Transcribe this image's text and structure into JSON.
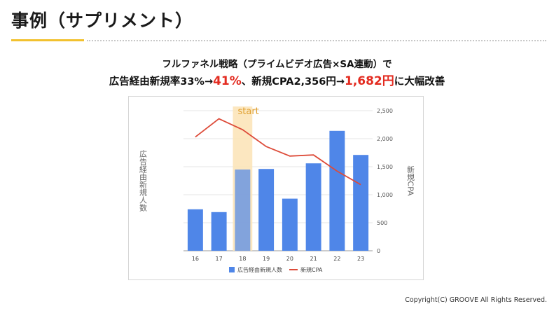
{
  "page": {
    "title": "事例（サプリメント）",
    "headline_line1": "フルファネル戦略（プライムビデオ広告×SA連動）で",
    "headline_line2": {
      "prefix": "広告経由新規率33%→",
      "value1": "41%",
      "middle": "、新規CPA2,356円→",
      "value2": "1,682円",
      "suffix": "に大幅改善"
    },
    "copyright": "Copyright(C) GROOVE All Rights Reserved."
  },
  "colors": {
    "accent_yellow": "#f2c12e",
    "bar_blue": "#4f86e8",
    "line_red": "#dd4b39",
    "highlight": "#fbe3b5",
    "headline_red": "#e32b20"
  },
  "chart_data": {
    "type": "bar",
    "categories": [
      "16",
      "17",
      "18",
      "19",
      "20",
      "21",
      "22",
      "23"
    ],
    "series": [
      {
        "name": "広告経由新規人数",
        "type": "bar",
        "axis": "left",
        "values": [
          0.74,
          0.69,
          1.45,
          1.46,
          0.93,
          1.56,
          2.14,
          1.71
        ]
      },
      {
        "name": "新規CPA",
        "type": "line",
        "axis": "right",
        "values": [
          2030,
          2356,
          2160,
          1860,
          1690,
          1710,
          1420,
          1180
        ]
      }
    ],
    "ylabel": "広告経由新規人数",
    "y2label": "新規CPA",
    "y_left_lim": [
      0,
      2.5
    ],
    "y2lim": [
      0,
      2500
    ],
    "y2ticks": [
      "0",
      "500",
      "1,000",
      "1,500",
      "2,000",
      "2,500"
    ],
    "grid": true,
    "legend_position": "bottom",
    "highlight": {
      "category": "18",
      "label": "start"
    }
  }
}
